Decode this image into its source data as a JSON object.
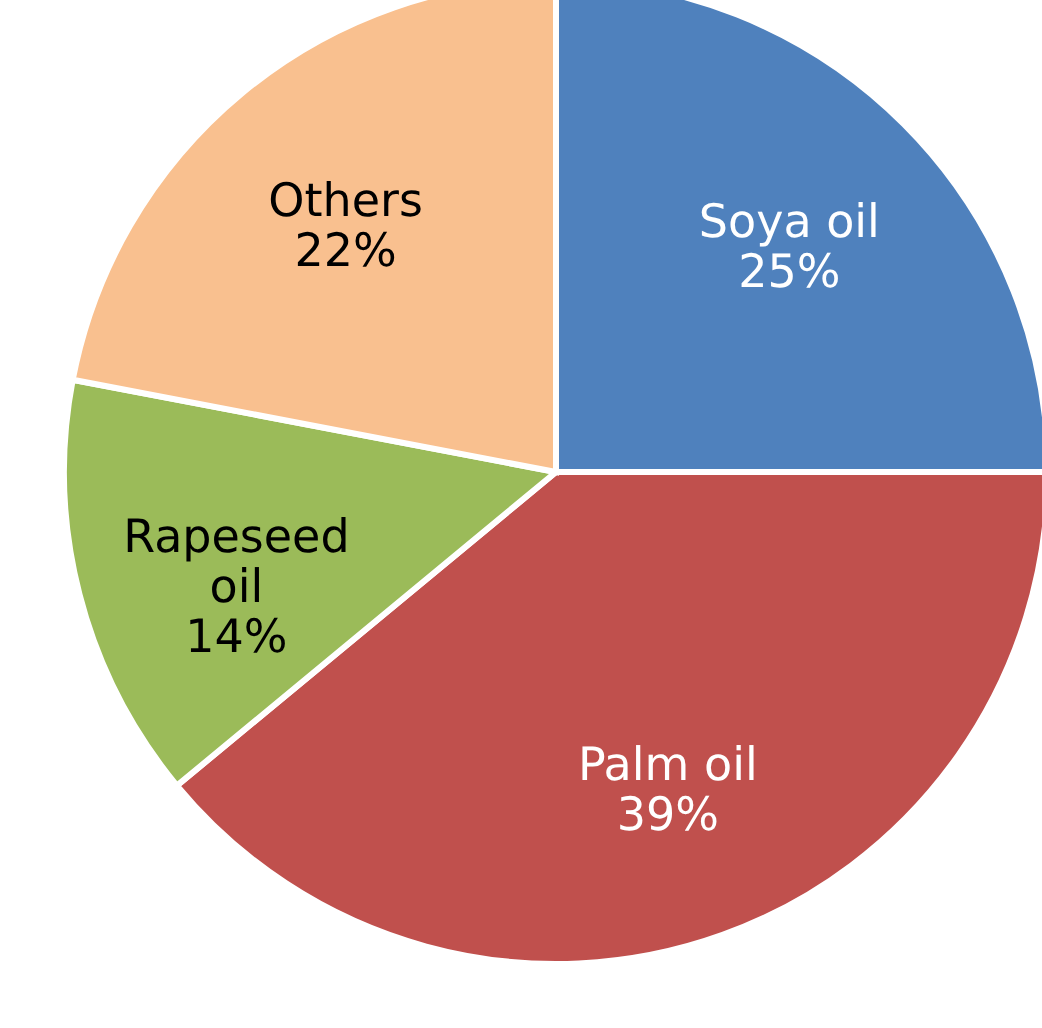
{
  "chart_data": {
    "type": "pie",
    "categories": [
      "Soya oil",
      "Palm oil",
      "Rapeseed oil",
      "Others"
    ],
    "values": [
      25,
      39,
      14,
      22
    ],
    "colors": [
      "#4f81bd",
      "#c0504d",
      "#9bbb59",
      "#f9c08f"
    ],
    "value_labels": [
      "25%",
      "39%",
      "14%",
      "22%"
    ]
  }
}
